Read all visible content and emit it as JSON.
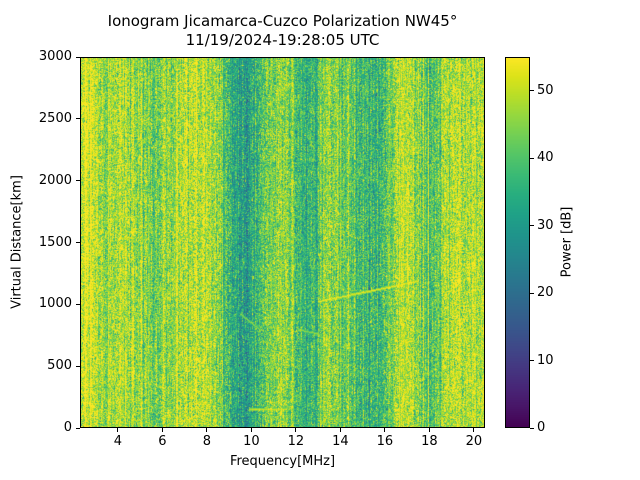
{
  "chart_data": {
    "type": "heatmap",
    "title": "Ionogram Jicamarca-Cuzco Polarization NW45°",
    "subtitle": "11/19/2024-19:28:05 UTC",
    "xlabel": "Frequency[MHz]",
    "ylabel": "Virtual Distance[km]",
    "colorbar_label": "Power [dB]",
    "xlim": [
      2.3,
      20.5
    ],
    "ylim": [
      0,
      3000
    ],
    "clim": [
      0,
      55
    ],
    "xticks": [
      4,
      6,
      8,
      10,
      12,
      14,
      16,
      18,
      20
    ],
    "yticks": [
      0,
      500,
      1000,
      1500,
      2000,
      2500,
      3000
    ],
    "cbar_ticks": [
      0,
      10,
      20,
      30,
      40,
      50
    ],
    "grid": false,
    "colormap": "viridis",
    "colormap_stops": [
      "#440154",
      "#481567",
      "#482677",
      "#453781",
      "#404788",
      "#39568C",
      "#33638D",
      "#2D708E",
      "#287D8E",
      "#238A8D",
      "#1F968B",
      "#20A387",
      "#29AF7F",
      "#3CBB75",
      "#55C667",
      "#73D055",
      "#95D840",
      "#B8DE29",
      "#DCE319",
      "#FDE725"
    ],
    "power_profile": {
      "freqs": [
        2.3,
        3.0,
        3.6,
        4.3,
        5.0,
        5.6,
        6.3,
        7.0,
        8.0,
        8.6,
        9.2,
        9.8,
        10.3,
        10.8,
        11.3,
        11.8,
        12.3,
        12.9,
        13.4,
        13.9,
        14.4,
        15.0,
        15.6,
        16.1,
        16.6,
        17.2,
        17.7,
        18.2,
        18.7,
        19.3,
        20.0,
        20.5
      ],
      "power_db": [
        50,
        50,
        45,
        49,
        46,
        43,
        47,
        50,
        50,
        44,
        33,
        31,
        36,
        44,
        46,
        44,
        37,
        36,
        48,
        44,
        39,
        38,
        37,
        40,
        49,
        50,
        42,
        40,
        47,
        50,
        50,
        50
      ]
    },
    "noise_std_db": 5.5,
    "column_jitter_db": 2.5,
    "echo_traces": [
      {
        "f_start": 13.0,
        "f_end": 17.5,
        "km_start": 1020,
        "km_end": 1185,
        "power_db": 53
      },
      {
        "f_start": 9.5,
        "f_end": 10.4,
        "km_start": 920,
        "km_end": 790,
        "power_db": 46
      },
      {
        "f_start": 12.1,
        "f_end": 13.0,
        "km_start": 790,
        "km_end": 760,
        "power_db": 46
      },
      {
        "f_start": 9.9,
        "f_end": 11.5,
        "km_start": 150,
        "km_end": 150,
        "power_db": 51
      }
    ],
    "seed": 42,
    "colors": {
      "background": "#ffffff",
      "axes": "#000000",
      "text": "#000000"
    }
  }
}
